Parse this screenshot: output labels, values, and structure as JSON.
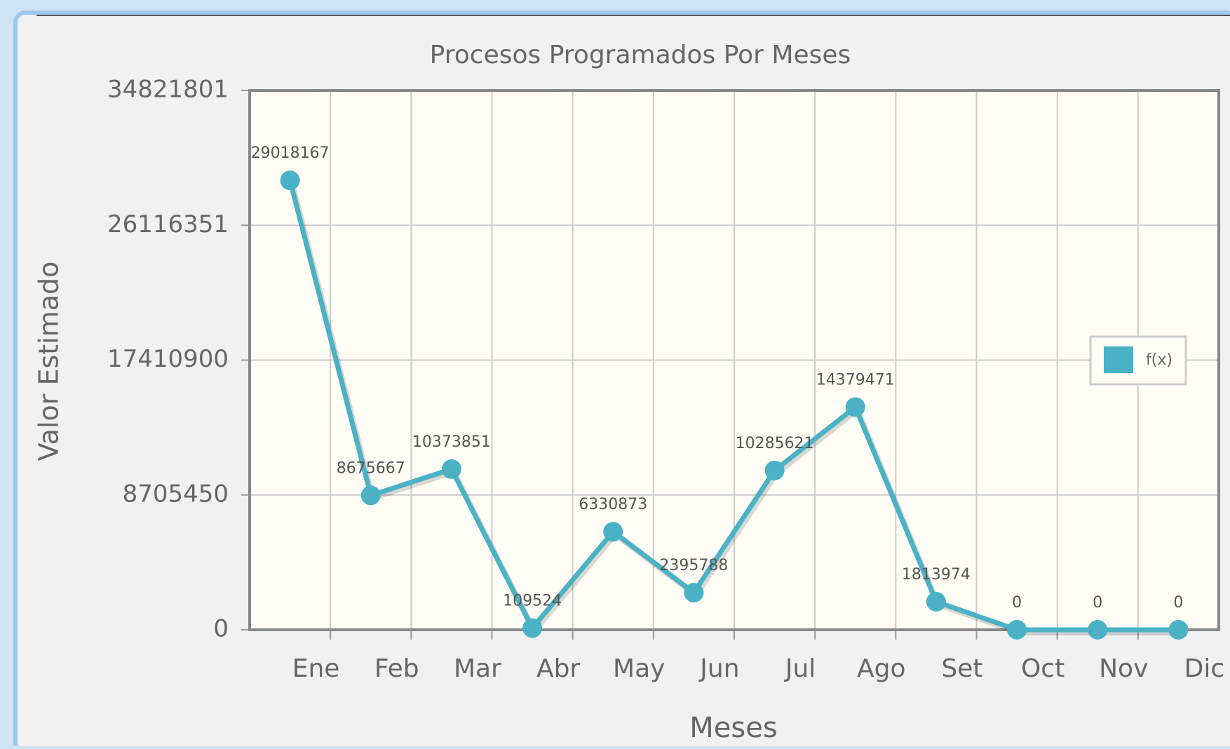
{
  "chart_data": {
    "type": "line",
    "title": "Procesos Programados Por Meses",
    "xlabel": "Meses",
    "ylabel": "Valor Estimado",
    "categories": [
      "Ene",
      "Feb",
      "Mar",
      "Abr",
      "May",
      "Jun",
      "Jul",
      "Ago",
      "Set",
      "Oct",
      "Nov",
      "Dic"
    ],
    "series": [
      {
        "name": "f(x)",
        "color": "#4bb2c5",
        "values": [
          29018167,
          8675667,
          10373851,
          109524,
          6330873,
          2395788,
          10285621,
          14379471,
          1813974,
          0,
          0,
          0
        ]
      }
    ],
    "ylim": [
      0,
      34821801
    ],
    "yticks": [
      0,
      8705450,
      17410900,
      26116351,
      34821801
    ],
    "grid": true,
    "legend": "right"
  }
}
